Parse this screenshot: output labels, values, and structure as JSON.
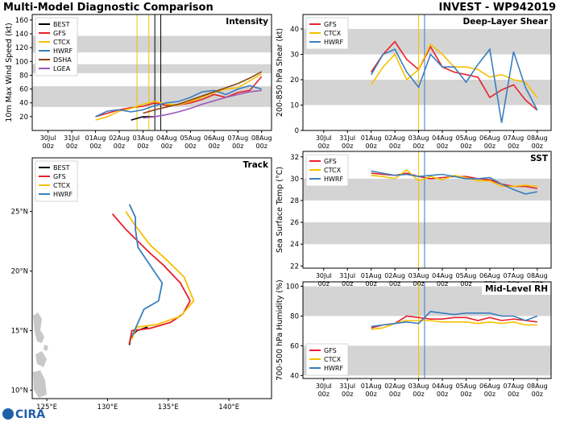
{
  "header": {
    "title": "Multi-Model Diagnostic Comparison",
    "storm": "INVEST - WP942019",
    "logo": "CIRA"
  },
  "chart_data": [
    {
      "type": "line",
      "title": "Intensity",
      "ylabel": "10m Max Wind Speed (kt)",
      "x": [
        "01Aug 00z",
        "01Aug 12z",
        "02Aug 00z",
        "02Aug 12z",
        "03Aug 00z",
        "03Aug 12z",
        "04Aug 00z",
        "04Aug 12z",
        "05Aug 00z",
        "05Aug 12z",
        "06Aug 00z",
        "06Aug 12z",
        "07Aug 00z",
        "07Aug 12z",
        "08Aug 00z"
      ],
      "series": [
        {
          "name": "BEST",
          "color": "#000000",
          "values": [
            null,
            null,
            null,
            15,
            20,
            20,
            null,
            null,
            null,
            null,
            null,
            null,
            null,
            null,
            null
          ]
        },
        {
          "name": "GFS",
          "color": "#e8202a",
          "values": [
            20,
            25,
            30,
            33,
            35,
            40,
            36,
            37,
            40,
            45,
            52,
            48,
            55,
            58,
            78
          ]
        },
        {
          "name": "CTCX",
          "color": "#f5c000",
          "values": [
            15,
            20,
            28,
            32,
            38,
            42,
            38,
            37,
            42,
            48,
            55,
            60,
            62,
            72,
            82
          ]
        },
        {
          "name": "HWRF",
          "color": "#3a7ebf",
          "values": [
            20,
            28,
            30,
            27,
            30,
            36,
            40,
            42,
            48,
            56,
            58,
            52,
            60,
            65,
            60
          ]
        },
        {
          "name": "DSHA",
          "color": "#8b4513",
          "values": [
            null,
            null,
            null,
            null,
            25,
            30,
            34,
            38,
            44,
            50,
            56,
            62,
            68,
            76,
            85
          ]
        },
        {
          "name": "LGEA",
          "color": "#9b59b6",
          "values": [
            null,
            null,
            null,
            null,
            18,
            20,
            23,
            27,
            32,
            38,
            43,
            48,
            52,
            56,
            58
          ]
        }
      ],
      "xlim": [
        "29Jul 08z",
        "08Aug 10z"
      ],
      "xticks": [
        "30Jul 00z",
        "31Jul 00z",
        "01Aug 00z",
        "02Aug 00z",
        "03Aug 00z",
        "04Aug 00z",
        "05Aug 00z",
        "06Aug 00z",
        "07Aug 00z",
        "08Aug 00z"
      ],
      "ylim": [
        0,
        168
      ],
      "yticks": [
        20,
        40,
        60,
        80,
        100,
        120,
        140,
        160
      ],
      "bands": [
        [
          34,
          64
        ],
        [
          83,
          96
        ],
        [
          113,
          137
        ]
      ],
      "vlines": [
        {
          "x": "02Aug 18z",
          "color": "#f5c000"
        },
        {
          "x": "03Aug 06z",
          "color": "#f5c000"
        },
        {
          "x": "03Aug 12z",
          "color": "#000000"
        },
        {
          "x": "03Aug 18z",
          "color": "#000000"
        }
      ],
      "legend": "upper left"
    },
    {
      "type": "track",
      "title": "Track",
      "series": [
        {
          "name": "BEST",
          "color": "#000000",
          "lon": [
            131.8,
            131.9,
            132.4,
            133.3
          ],
          "lat": [
            13.8,
            14.4,
            15.0,
            15.3
          ]
        },
        {
          "name": "GFS",
          "color": "#e8202a",
          "lon": [
            131.8,
            132.0,
            133.5,
            135.2,
            136.2,
            136.8,
            136.0,
            134.6,
            133.5,
            132.5,
            131.5,
            130.4
          ],
          "lat": [
            13.9,
            15.0,
            15.2,
            15.7,
            16.4,
            17.5,
            19.0,
            20.5,
            21.5,
            22.5,
            23.5,
            24.8
          ]
        },
        {
          "name": "CTCX",
          "color": "#f5c000",
          "lon": [
            132.0,
            132.4,
            134.0,
            136.0,
            137.1,
            136.3,
            134.8,
            133.5,
            132.3,
            131.5
          ],
          "lat": [
            14.3,
            15.3,
            15.5,
            16.2,
            17.5,
            19.5,
            21.0,
            22.2,
            23.8,
            25.0
          ]
        },
        {
          "name": "HWRF",
          "color": "#3a7ebf",
          "lon": [
            132.0,
            133.0,
            134.2,
            134.5,
            133.5,
            132.5,
            132.3,
            132.3,
            131.8
          ],
          "lat": [
            14.5,
            16.8,
            17.5,
            19.0,
            20.5,
            22.0,
            23.5,
            24.5,
            25.6
          ]
        }
      ],
      "xlim": [
        123.8,
        143.5
      ],
      "ylim": [
        9.3,
        29.5
      ],
      "xticks": [
        {
          "value": 125,
          "label": "125°E"
        },
        {
          "value": 130,
          "label": "130°E"
        },
        {
          "value": 135,
          "label": "135°E"
        },
        {
          "value": 140,
          "label": "140°E"
        }
      ],
      "yticks": [
        {
          "value": 10,
          "label": "10°N"
        },
        {
          "value": 15,
          "label": "15°N"
        },
        {
          "value": 20,
          "label": "20°N"
        },
        {
          "value": 25,
          "label": "25°N"
        }
      ],
      "legend": "upper left"
    },
    {
      "type": "line",
      "title": "Deep-Layer Shear",
      "ylabel": "200-850 hPa Shear (kt)",
      "x": [
        "01Aug 00z",
        "01Aug 12z",
        "02Aug 00z",
        "02Aug 12z",
        "03Aug 00z",
        "03Aug 12z",
        "04Aug 00z",
        "04Aug 12z",
        "05Aug 00z",
        "05Aug 12z",
        "06Aug 00z",
        "06Aug 12z",
        "07Aug 00z",
        "07Aug 12z",
        "08Aug 00z"
      ],
      "series": [
        {
          "name": "GFS",
          "color": "#e8202a",
          "values": [
            23,
            30,
            35,
            28,
            24,
            33,
            25,
            23,
            22,
            21,
            13,
            16,
            18,
            12,
            8
          ]
        },
        {
          "name": "CTCX",
          "color": "#f5c000",
          "values": [
            18,
            25,
            30,
            20,
            24,
            34,
            30,
            25,
            25,
            24,
            21,
            22,
            20,
            19,
            13
          ]
        },
        {
          "name": "HWRF",
          "color": "#3a7ebf",
          "values": [
            22,
            30,
            32,
            23,
            17,
            30,
            25,
            25,
            19,
            26,
            32,
            3,
            31,
            17,
            8
          ]
        }
      ],
      "xlim": [
        "29Jul 03z",
        "08Aug 14z"
      ],
      "xticks": [
        "30Jul 00z",
        "31Jul 00z",
        "01Aug 00z",
        "02Aug 00z",
        "03Aug 00z",
        "04Aug 00z",
        "05Aug 00z",
        "06Aug 00z",
        "07Aug 00z",
        "08Aug 00z"
      ],
      "ylim": [
        0,
        45.7
      ],
      "yticks": [
        0,
        10,
        20,
        30,
        40
      ],
      "bands": [
        [
          10,
          20
        ],
        [
          30,
          40
        ]
      ],
      "vlines": [
        {
          "x": "03Aug 00z",
          "color": "#f5c000"
        },
        {
          "x": "03Aug 06z",
          "color": "#3a7ebf"
        }
      ],
      "legend": "upper left"
    },
    {
      "type": "line",
      "title": "SST",
      "ylabel": "Sea Surface Temp (°C)",
      "x": [
        "01Aug 00z",
        "01Aug 12z",
        "02Aug 00z",
        "02Aug 12z",
        "03Aug 00z",
        "03Aug 12z",
        "04Aug 00z",
        "04Aug 12z",
        "05Aug 00z",
        "05Aug 12z",
        "06Aug 00z",
        "06Aug 12z",
        "07Aug 00z",
        "07Aug 12z",
        "08Aug 00z"
      ],
      "series": [
        {
          "name": "GFS",
          "color": "#e8202a",
          "values": [
            30.5,
            30.4,
            30.3,
            30.5,
            30.2,
            30.0,
            30.1,
            30.2,
            30.2,
            30.0,
            29.9,
            29.5,
            29.3,
            29.3,
            29.1
          ]
        },
        {
          "name": "CTCX",
          "color": "#f5c000",
          "values": [
            30.3,
            30.2,
            30.0,
            30.8,
            29.8,
            30.2,
            29.9,
            30.3,
            30.1,
            29.8,
            29.8,
            29.3,
            29.3,
            29.4,
            29.3
          ]
        },
        {
          "name": "HWRF",
          "color": "#3a7ebf",
          "values": [
            30.7,
            30.5,
            30.3,
            30.4,
            30.2,
            30.3,
            30.4,
            30.2,
            30.0,
            30.0,
            30.1,
            29.5,
            29.0,
            28.6,
            28.8
          ]
        }
      ],
      "xlim": [
        "29Jul 03z",
        "08Aug 14z"
      ],
      "xticks": [
        "30Jul 00z",
        "31Jul 00z",
        "01Aug 00z",
        "02Aug 00z",
        "03Aug 00z",
        "04Aug 00z",
        "05Aug 00z",
        "06Aug 00z",
        "07Aug 00z",
        "08Aug 00z"
      ],
      "ylim": [
        21.8,
        32.5
      ],
      "yticks": [
        22,
        24,
        26,
        28,
        30,
        32
      ],
      "bands": [
        [
          24,
          26
        ],
        [
          28,
          30
        ]
      ],
      "vlines": [
        {
          "x": "03Aug 00z",
          "color": "#f5c000"
        },
        {
          "x": "03Aug 06z",
          "color": "#3a7ebf"
        }
      ],
      "legend": "upper left"
    },
    {
      "type": "line",
      "title": "Mid-Level RH",
      "ylabel": "700-500 hPa Humidity (%)",
      "x": [
        "01Aug 00z",
        "01Aug 12z",
        "02Aug 00z",
        "02Aug 12z",
        "03Aug 00z",
        "03Aug 12z",
        "04Aug 00z",
        "04Aug 12z",
        "05Aug 00z",
        "05Aug 12z",
        "06Aug 00z",
        "06Aug 12z",
        "07Aug 00z",
        "07Aug 12z",
        "08Aug 00z"
      ],
      "series": [
        {
          "name": "GFS",
          "color": "#e8202a",
          "values": [
            72,
            74,
            75,
            80,
            79,
            78,
            78,
            79,
            79,
            77,
            79,
            77,
            78,
            77,
            76
          ]
        },
        {
          "name": "CTCX",
          "color": "#f5c000",
          "values": [
            71,
            72,
            75,
            77,
            77,
            77,
            76,
            76,
            76,
            75,
            76,
            75,
            76,
            74,
            74
          ]
        },
        {
          "name": "HWRF",
          "color": "#3a7ebf",
          "values": [
            73,
            74,
            75,
            76,
            75,
            83,
            82,
            81,
            82,
            82,
            82,
            80,
            80,
            77,
            80
          ]
        }
      ],
      "xlim": [
        "29Jul 03z",
        "08Aug 14z"
      ],
      "xticks": [
        "30Jul 00z",
        "31Jul 00z",
        "01Aug 00z",
        "02Aug 00z",
        "03Aug 00z",
        "04Aug 00z",
        "05Aug 00z",
        "06Aug 00z",
        "07Aug 00z",
        "08Aug 00z"
      ],
      "ylim": [
        38,
        103
      ],
      "yticks": [
        40,
        60,
        80,
        100
      ],
      "bands": [
        [
          40,
          60
        ],
        [
          80,
          100
        ]
      ],
      "vlines": [
        {
          "x": "03Aug 00z",
          "color": "#f5c000"
        },
        {
          "x": "03Aug 06z",
          "color": "#3a7ebf"
        }
      ],
      "legend": "lower left"
    }
  ]
}
